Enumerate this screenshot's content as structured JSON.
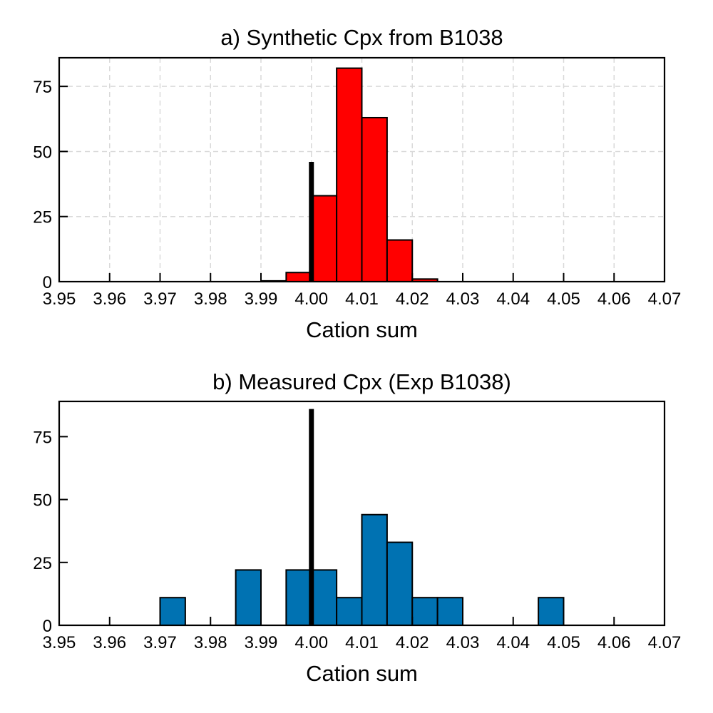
{
  "chart_data": [
    {
      "type": "bar",
      "title": "a) Synthetic Cpx from B1038",
      "xlabel": "Cation sum",
      "ylabel": "",
      "xlim": [
        3.95,
        4.07
      ],
      "ylim": [
        0,
        86
      ],
      "xticks": [
        "3.95",
        "3.96",
        "3.97",
        "3.98",
        "3.99",
        "4.00",
        "4.01",
        "4.02",
        "4.03",
        "4.04",
        "4.05",
        "4.06",
        "4.07"
      ],
      "yticks": [
        "0",
        "25",
        "50",
        "75"
      ],
      "grid": true,
      "bar_color": "#ff0000",
      "bin_width": 0.005,
      "bins": [
        {
          "start": 3.99,
          "end": 3.995,
          "count": 0.3
        },
        {
          "start": 3.995,
          "end": 4.0,
          "count": 3.5
        },
        {
          "start": 4.0,
          "end": 4.005,
          "count": 33
        },
        {
          "start": 4.005,
          "end": 4.01,
          "count": 82
        },
        {
          "start": 4.01,
          "end": 4.015,
          "count": 63
        },
        {
          "start": 4.015,
          "end": 4.02,
          "count": 16
        },
        {
          "start": 4.02,
          "end": 4.025,
          "count": 1
        }
      ],
      "reference_line": {
        "x": 4.0,
        "height": 46,
        "color": "#000000"
      }
    },
    {
      "type": "bar",
      "title": "b) Measured Cpx (Exp B1038)",
      "xlabel": "Cation sum",
      "ylabel": "",
      "xlim": [
        3.95,
        4.07
      ],
      "ylim": [
        0,
        89
      ],
      "xticks": [
        "3.95",
        "3.96",
        "3.97",
        "3.98",
        "3.99",
        "4.00",
        "4.01",
        "4.02",
        "4.03",
        "4.04",
        "4.05",
        "4.06",
        "4.07"
      ],
      "yticks": [
        "0",
        "25",
        "50",
        "75"
      ],
      "grid": false,
      "bar_color": "#0072b2",
      "bin_width": 0.005,
      "bins": [
        {
          "start": 3.97,
          "end": 3.975,
          "count": 11
        },
        {
          "start": 3.985,
          "end": 3.99,
          "count": 22
        },
        {
          "start": 3.995,
          "end": 4.0,
          "count": 22
        },
        {
          "start": 4.0,
          "end": 4.005,
          "count": 22
        },
        {
          "start": 4.005,
          "end": 4.01,
          "count": 11
        },
        {
          "start": 4.01,
          "end": 4.015,
          "count": 44
        },
        {
          "start": 4.015,
          "end": 4.02,
          "count": 33
        },
        {
          "start": 4.02,
          "end": 4.025,
          "count": 11
        },
        {
          "start": 4.025,
          "end": 4.03,
          "count": 11
        },
        {
          "start": 4.045,
          "end": 4.05,
          "count": 11
        }
      ],
      "reference_line": {
        "x": 4.0,
        "height": 86,
        "color": "#000000"
      }
    }
  ]
}
